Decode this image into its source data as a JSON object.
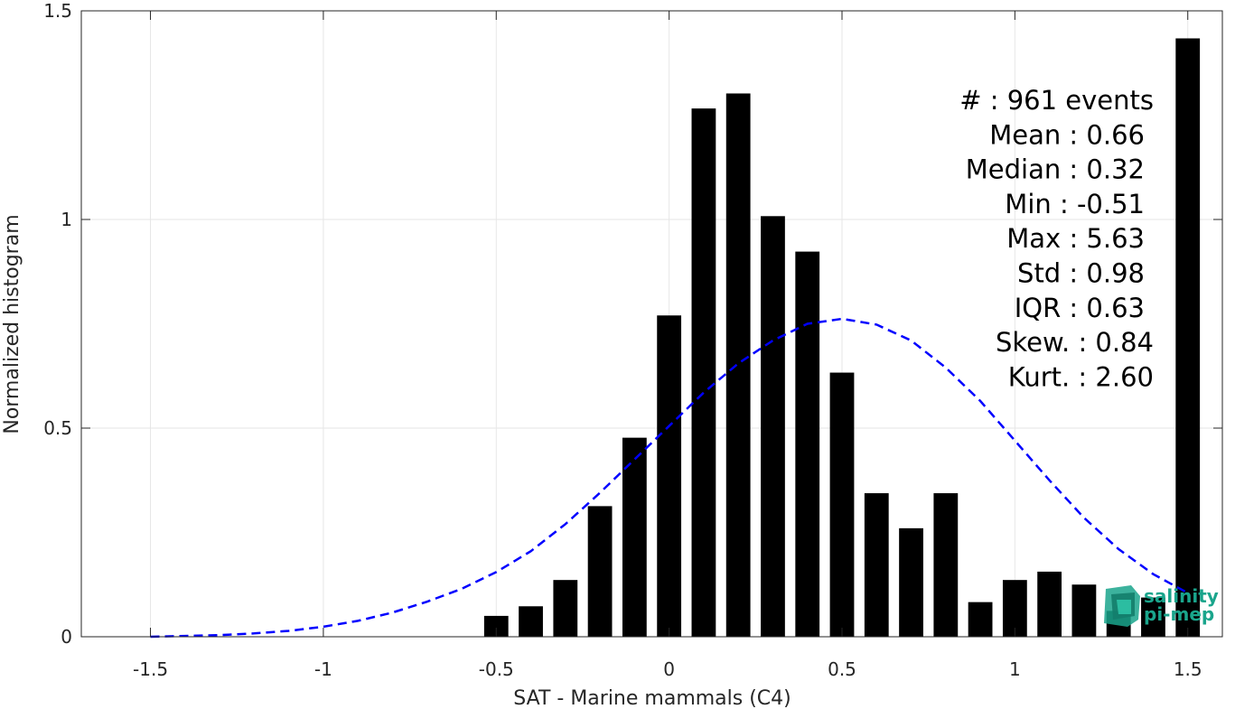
{
  "chart_data": {
    "type": "bar",
    "title": "",
    "xlabel": "SAT - Marine mammals (C4)",
    "ylabel": "Normalized histogram",
    "xlim": [
      -1.7,
      1.6
    ],
    "ylim": [
      0,
      1.5
    ],
    "grid": true,
    "x_ticks": [
      -1.5,
      -1,
      -0.5,
      0,
      0.5,
      1,
      1.5
    ],
    "x_tick_labels": [
      "-1.5",
      "-1",
      "-0.5",
      "0",
      "0.5",
      "1",
      "1.5"
    ],
    "y_ticks": [
      0,
      0.5,
      1,
      1.5
    ],
    "y_tick_labels": [
      "0",
      "0.5",
      "1",
      "1.5"
    ],
    "bar_width": 0.07,
    "bars": [
      {
        "x": -0.5,
        "y": 0.05
      },
      {
        "x": -0.4,
        "y": 0.073
      },
      {
        "x": -0.3,
        "y": 0.136
      },
      {
        "x": -0.2,
        "y": 0.313
      },
      {
        "x": -0.1,
        "y": 0.477
      },
      {
        "x": 0.0,
        "y": 0.77
      },
      {
        "x": 0.1,
        "y": 1.266
      },
      {
        "x": 0.2,
        "y": 1.302
      },
      {
        "x": 0.3,
        "y": 1.008
      },
      {
        "x": 0.4,
        "y": 0.923
      },
      {
        "x": 0.5,
        "y": 0.633
      },
      {
        "x": 0.6,
        "y": 0.344
      },
      {
        "x": 0.7,
        "y": 0.26
      },
      {
        "x": 0.8,
        "y": 0.344
      },
      {
        "x": 0.9,
        "y": 0.083
      },
      {
        "x": 1.0,
        "y": 0.136
      },
      {
        "x": 1.1,
        "y": 0.156
      },
      {
        "x": 1.2,
        "y": 0.125
      },
      {
        "x": 1.3,
        "y": 0.062
      },
      {
        "x": 1.4,
        "y": 0.094
      },
      {
        "x": 1.5,
        "y": 1.434
      }
    ],
    "fit_curve": {
      "style": "dashed",
      "color": "#0000ff",
      "x": [
        -1.5,
        -1.4,
        -1.3,
        -1.2,
        -1.1,
        -1.0,
        -0.9,
        -0.8,
        -0.7,
        -0.6,
        -0.5,
        -0.4,
        -0.3,
        -0.2,
        -0.1,
        0.0,
        0.1,
        0.2,
        0.3,
        0.4,
        0.5,
        0.6,
        0.7,
        0.8,
        0.9,
        1.0,
        1.1,
        1.2,
        1.3,
        1.4,
        1.5
      ],
      "y": [
        0.0,
        0.002,
        0.004,
        0.008,
        0.014,
        0.024,
        0.038,
        0.058,
        0.084,
        0.115,
        0.155,
        0.205,
        0.27,
        0.345,
        0.425,
        0.505,
        0.585,
        0.655,
        0.71,
        0.75,
        0.762,
        0.748,
        0.71,
        0.645,
        0.565,
        0.47,
        0.375,
        0.285,
        0.21,
        0.15,
        0.105
      ]
    },
    "bar_color": "#000000"
  },
  "stats": [
    {
      "label": "#  : 961 events"
    },
    {
      "label": "Mean : 0.66"
    },
    {
      "label": "Median : 0.32"
    },
    {
      "label": "Min : -0.51"
    },
    {
      "label": "Max : 5.63"
    },
    {
      "label": "Std : 0.98"
    },
    {
      "label": "IQR : 0.63"
    },
    {
      "label": "Skew. : 0.84"
    },
    {
      "label": "Kurt. : 2.60"
    }
  ],
  "logo": {
    "line1": "salinity",
    "line2": "pi-mep",
    "color": "#1aa58c"
  }
}
